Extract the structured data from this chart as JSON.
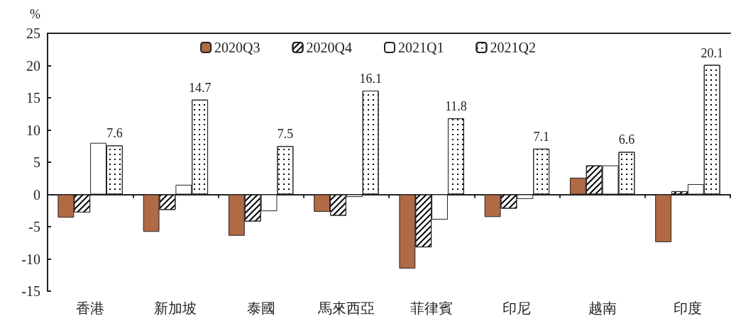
{
  "chart_data": {
    "type": "bar",
    "ylabel": "%",
    "categories": [
      "香港",
      "新加坡",
      "泰國",
      "馬來西亞",
      "菲律賓",
      "印尼",
      "越南",
      "印度"
    ],
    "series": [
      {
        "name": "2020Q3",
        "color": "#b06a45",
        "values": [
          -3.6,
          -5.8,
          -6.4,
          -2.7,
          -11.5,
          -3.5,
          2.6,
          -7.4
        ]
      },
      {
        "name": "2020Q4",
        "color": "#ffffff",
        "values": [
          -2.8,
          -2.4,
          -4.2,
          -3.3,
          -8.2,
          -2.2,
          4.5,
          0.5
        ]
      },
      {
        "name": "2021Q1",
        "color": "#ffffff",
        "values": [
          8.0,
          1.5,
          -2.6,
          -0.4,
          -3.9,
          -0.7,
          4.5,
          1.6
        ]
      },
      {
        "name": "2021Q2",
        "color": "#ffffff",
        "values": [
          7.6,
          14.7,
          7.5,
          16.1,
          11.8,
          7.1,
          6.6,
          20.1
        ],
        "value_labels": [
          "7.6",
          "14.7",
          "7.5",
          "16.1",
          "11.8",
          "7.1",
          "6.6",
          "20.1"
        ]
      }
    ],
    "ylim": [
      -15,
      25
    ],
    "yticks": [
      -15,
      -10,
      -5,
      0,
      5,
      10,
      15,
      20,
      25
    ],
    "legend": "top"
  }
}
